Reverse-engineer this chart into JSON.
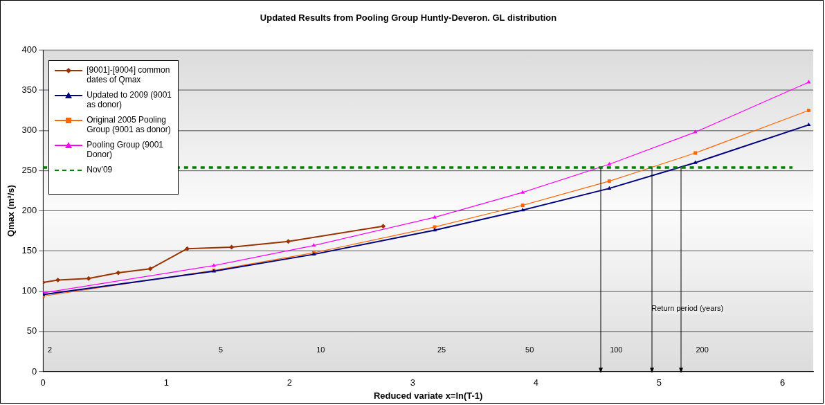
{
  "chart_data": {
    "type": "line",
    "title": "Updated Results from Pooling Group Huntly-Deveron. GL distribution",
    "xlabel": "Reduced variate x=ln(T-1)",
    "ylabel": "Qmax (m³/s)",
    "xlim": [
      0,
      6.25
    ],
    "xticks": [
      0,
      1,
      2,
      3,
      4,
      5,
      6
    ],
    "ylim": [
      0,
      400
    ],
    "yticks": [
      0,
      50,
      100,
      150,
      200,
      250,
      300,
      350,
      400
    ],
    "grid": "y",
    "legend": "top left",
    "series": [
      {
        "name": "[9001]-[9004] common dates of Qmax",
        "color": "#993300",
        "marker": "diamond",
        "x": [
          0,
          0.12,
          0.37,
          0.61,
          0.87,
          1.17,
          1.53,
          1.99,
          2.76
        ],
        "values": [
          111,
          114,
          116,
          123,
          128,
          153,
          155,
          162,
          181
        ]
      },
      {
        "name": "Updated to 2009 (9001 as donor)",
        "color": "#000080",
        "marker": "triangle",
        "x": [
          0,
          1.386,
          2.197,
          3.178,
          3.892,
          4.595,
          5.293,
          6.213
        ],
        "values": [
          96,
          125,
          146,
          176,
          201,
          228,
          260,
          307
        ]
      },
      {
        "name": "Original 2005 Pooling Group (9001 as donor)",
        "color": "#ff6600",
        "marker": "square",
        "x": [
          0,
          1.386,
          2.197,
          3.178,
          3.892,
          4.595,
          5.293,
          6.213
        ],
        "values": [
          94,
          126,
          148,
          180,
          207,
          237,
          272,
          325
        ]
      },
      {
        "name": "Pooling Group (9001 Donor)",
        "color": "#ff00ff",
        "marker": "triangle",
        "x": [
          0,
          1.386,
          2.197,
          3.178,
          3.892,
          4.595,
          5.293,
          6.213
        ],
        "values": [
          98,
          132,
          157,
          192,
          223,
          258,
          298,
          360
        ]
      }
    ],
    "ref_lines": [
      {
        "axis": "y",
        "value": 254,
        "label": "Nov'09",
        "color": "#008000",
        "line_style": "dashed"
      },
      {
        "axis": "x",
        "value": 4.52,
        "color": "#000000"
      },
      {
        "axis": "x",
        "value": 4.93,
        "color": "#000000"
      },
      {
        "axis": "x",
        "value": 5.17,
        "color": "#000000"
      }
    ],
    "annotations": [
      "Return period (years)",
      "2",
      "5",
      "10",
      "25",
      "50",
      "100",
      "200"
    ]
  }
}
